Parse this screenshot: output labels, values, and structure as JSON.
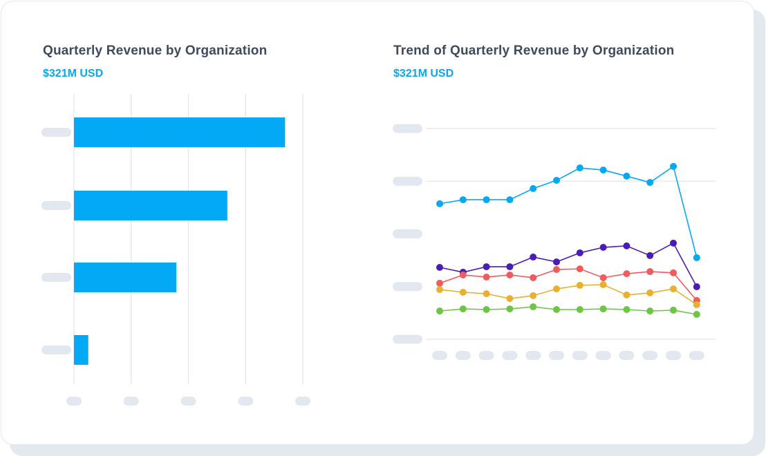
{
  "colors": {
    "accent": "#0aa6f0",
    "placeholder": "#e3e8f0",
    "grid": "#e6e9ef"
  },
  "chart_data": [
    {
      "type": "bar",
      "orientation": "horizontal",
      "title": "Quarterly Revenue by Organization",
      "subtitle": "$321M USD",
      "values": [
        3.69,
        2.68,
        1.79,
        0.25
      ],
      "xlim": [
        0,
        4
      ],
      "grid": true,
      "bar_color": "#03a9f4"
    },
    {
      "type": "line",
      "title": "Trend of Quarterly Revenue by Organization",
      "subtitle": "$321M USD",
      "ylim": [
        0,
        100
      ],
      "grid": true,
      "series": [
        {
          "color": "#03a9f4",
          "values": [
            64.3,
            66.2,
            66.2,
            66.2,
            71.5,
            75.4,
            81.3,
            80.3,
            77.4,
            74.4,
            82,
            38.7
          ]
        },
        {
          "color": "#4a1bb5",
          "values": [
            34.1,
            31.8,
            34.4,
            34.4,
            39,
            36.7,
            41,
            43.6,
            44.3,
            39.7,
            45.6,
            24.9
          ]
        },
        {
          "color": "#f25b5b",
          "values": [
            26.6,
            30.5,
            29.5,
            30.5,
            29.2,
            33.1,
            33.4,
            29.2,
            31.1,
            32.1,
            31.5,
            18.4
          ]
        },
        {
          "color": "#e8b02e",
          "values": [
            23.6,
            22.3,
            21.6,
            19.3,
            20.7,
            23.9,
            25.6,
            25.9,
            21,
            22,
            23.9,
            16.4
          ]
        },
        {
          "color": "#6cc644",
          "values": [
            13.4,
            14.4,
            14.1,
            14.4,
            15.4,
            14.1,
            14.1,
            14.4,
            14.1,
            13.4,
            13.8,
            11.8
          ]
        }
      ]
    }
  ]
}
